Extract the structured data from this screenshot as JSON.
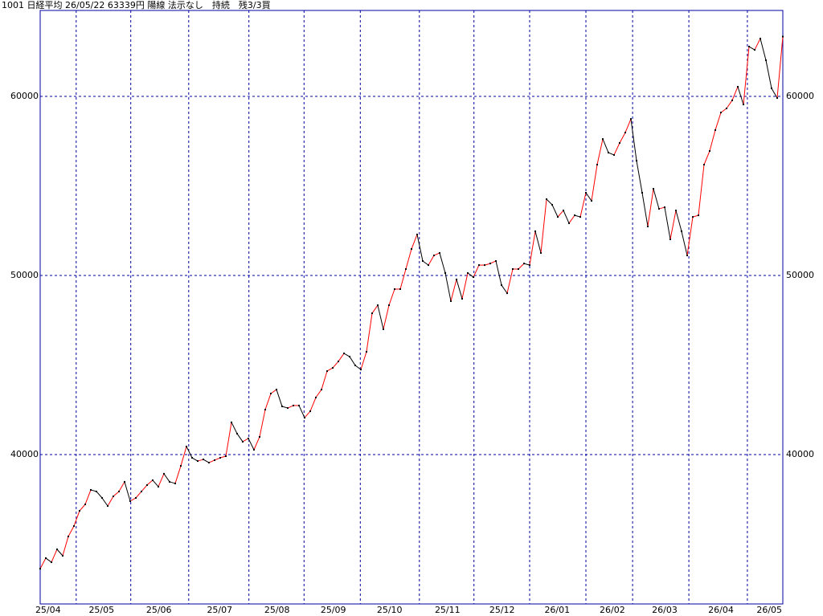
{
  "chart_data": {
    "type": "line",
    "title": "1001 日経平均 26/05/22 63339円 陽線 法示なし　持続　残3/3買",
    "ylim": [
      31660,
      64800
    ],
    "yticks": [
      40000,
      50000,
      60000
    ],
    "grid": true,
    "xlim": [
      0,
      132
    ],
    "xticks": [
      {
        "value": 1.4,
        "label": "25/04"
      },
      {
        "value": 10.9,
        "label": "25/05"
      },
      {
        "value": 21.1,
        "label": "25/06"
      },
      {
        "value": 31.9,
        "label": "25/07"
      },
      {
        "value": 42.1,
        "label": "25/08"
      },
      {
        "value": 52.1,
        "label": "25/09"
      },
      {
        "value": 62.1,
        "label": "25/10"
      },
      {
        "value": 72.4,
        "label": "25/11"
      },
      {
        "value": 82.1,
        "label": "25/12"
      },
      {
        "value": 91.9,
        "label": "26/01"
      },
      {
        "value": 101.7,
        "label": "26/02"
      },
      {
        "value": 111,
        "label": "26/03"
      },
      {
        "value": 121,
        "label": "26/04"
      },
      {
        "value": 129.6,
        "label": "26/05"
      }
    ],
    "xgrid": [
      6.4,
      16.1,
      26.4,
      37.1,
      46.9,
      56.9,
      67.4,
      77.1,
      87,
      97,
      105.3,
      115.3,
      125.7
    ],
    "up_color": "#ff0000",
    "down_color": "#000000",
    "grid_color": "#0000a0",
    "values": [
      33630,
      34220,
      33990,
      34710,
      34350,
      35430,
      36010,
      36860,
      37220,
      38030,
      37940,
      37580,
      37130,
      37670,
      37940,
      38480,
      37400,
      37580,
      37940,
      38300,
      38570,
      38210,
      38930,
      38480,
      38390,
      39370,
      40450,
      39820,
      39640,
      39730,
      39550,
      39690,
      39820,
      39910,
      41800,
      41170,
      40720,
      40900,
      40270,
      40990,
      42510,
      43410,
      43630,
      42690,
      42600,
      42740,
      42740,
      42060,
      42420,
      43190,
      43630,
      44660,
      44840,
      45200,
      45650,
      45470,
      44980,
      44750,
      45740,
      47890,
      48340,
      47000,
      48340,
      49240,
      49240,
      50360,
      51480,
      52290,
      50810,
      50580,
      51120,
      51260,
      50140,
      48570,
      49780,
      48700,
      50140,
      49910,
      50580,
      50580,
      50670,
      50810,
      49460,
      49010,
      50360,
      50360,
      50670,
      50580,
      52470,
      51260,
      54260,
      53950,
      53270,
      53630,
      52920,
      53360,
      53270,
      54620,
      54170,
      56190,
      57620,
      56860,
      56730,
      57400,
      57980,
      58740,
      56410,
      54620,
      52740,
      54840,
      53720,
      53810,
      52020,
      53630,
      52470,
      51120,
      53270,
      53360,
      56190,
      56950,
      58120,
      59100,
      59330,
      59780,
      60540,
      59550,
      62780,
      62600,
      63230,
      62020,
      60450,
      59910,
      63339
    ]
  }
}
